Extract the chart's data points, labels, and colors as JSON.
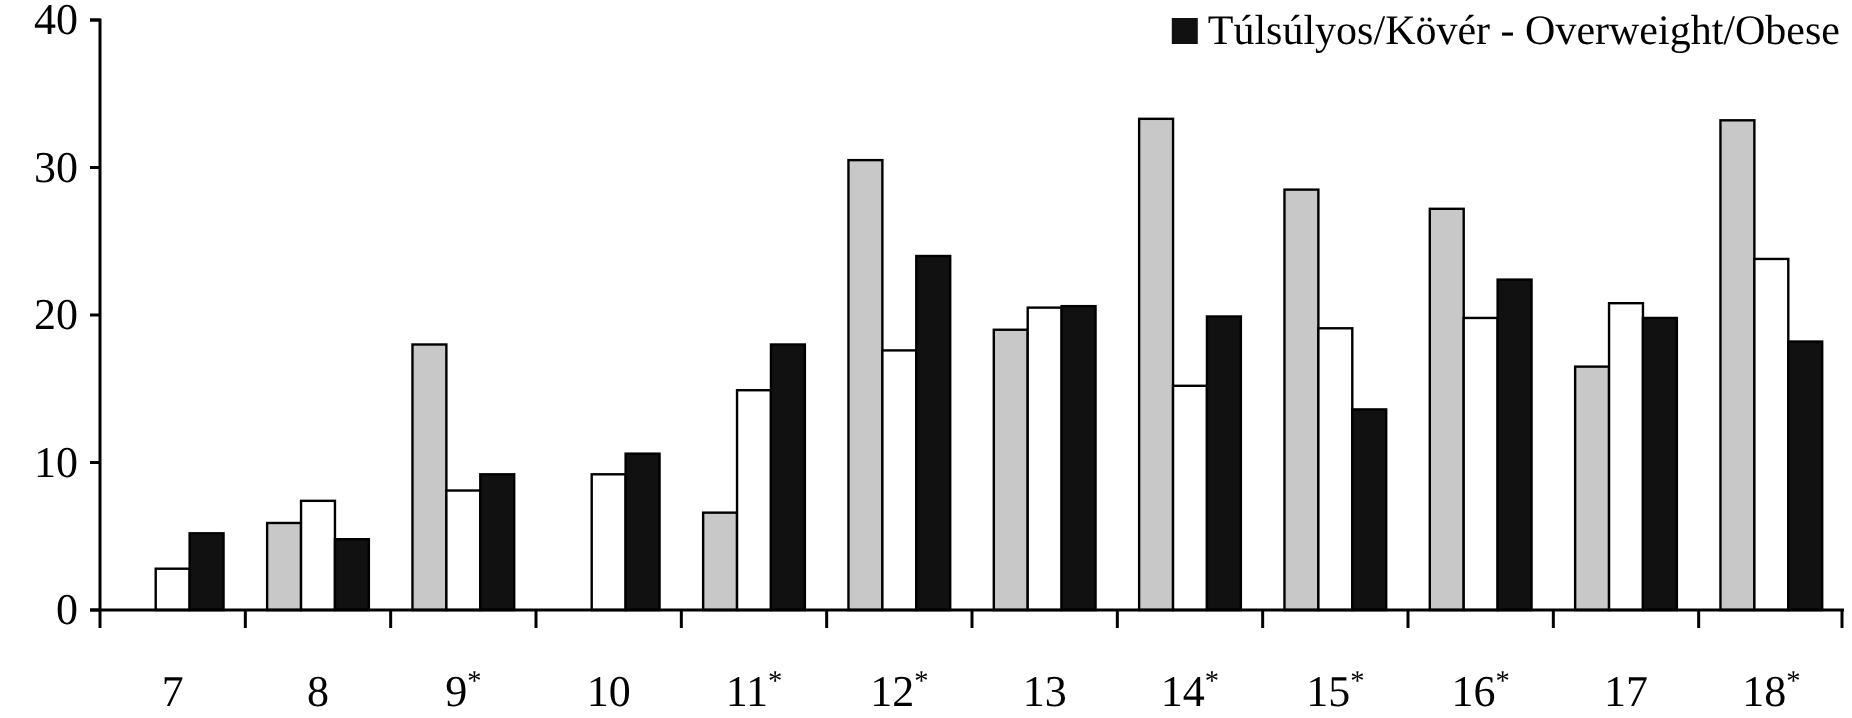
{
  "chart_data": {
    "type": "bar",
    "categories": [
      "7",
      "8",
      "9$^{*}$",
      "10",
      "11$^{*}$",
      "12$^{*}$",
      "13",
      "14$^{*}$",
      "15$^{*}$",
      "16$^{*}$",
      "17",
      "18$^{*}$"
    ],
    "series": [
      {
        "color": "#c8c8c8",
        "values": [
          null,
          5.9,
          18.0,
          null,
          6.6,
          30.5,
          19.0,
          33.3,
          28.5,
          27.2,
          16.5,
          33.2
        ]
      },
      {
        "color": "#ffffff",
        "values": [
          2.8,
          7.4,
          8.1,
          9.2,
          14.9,
          17.6,
          20.5,
          15.2,
          19.1,
          19.8,
          20.8,
          23.8
        ]
      },
      {
        "name": "Túlsúlyos/Kövér - Overweight/Obese",
        "color": "#111111",
        "values": [
          5.2,
          4.8,
          9.2,
          10.6,
          18.0,
          24.0,
          20.6,
          19.9,
          13.6,
          22.4,
          19.8,
          18.2
        ]
      }
    ],
    "ylim": [
      0,
      40
    ],
    "yticks": [
      0,
      10,
      20,
      30,
      40
    ],
    "grid": false,
    "legend": "top right"
  }
}
